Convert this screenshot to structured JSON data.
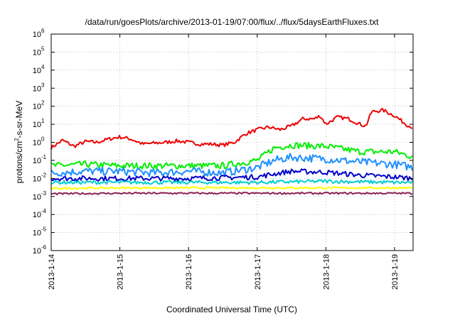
{
  "chart_data": {
    "type": "line",
    "title": "/data/run/goesPlots/archive/2013-01-19/07:00/flux/../flux/5daysEarthFluxes.txt",
    "xlabel": "Coordinated Universal Time (UTC)",
    "ylabel": {
      "prefix": "protons/cm",
      "sup": "2",
      "suffix": "-s-sr-MeV"
    },
    "y_scale": "log",
    "ylim": [
      1e-06,
      1000000.0
    ],
    "xlim": [
      "2013-01-14",
      "2013-01-19 07:00"
    ],
    "grid": true,
    "y_ticks": [
      {
        "value": 1e-06,
        "base": "10",
        "exp": "-6"
      },
      {
        "value": 1e-05,
        "base": "10",
        "exp": "-5"
      },
      {
        "value": 0.0001,
        "base": "10",
        "exp": "-4"
      },
      {
        "value": 0.001,
        "base": "10",
        "exp": "-3"
      },
      {
        "value": 0.01,
        "base": "10",
        "exp": "-2"
      },
      {
        "value": 0.1,
        "base": "10",
        "exp": "-1"
      },
      {
        "value": 1,
        "base": "10",
        "exp": "0"
      },
      {
        "value": 10.0,
        "base": "10",
        "exp": "1"
      },
      {
        "value": 100.0,
        "base": "10",
        "exp": "2"
      },
      {
        "value": 1000.0,
        "base": "10",
        "exp": "3"
      },
      {
        "value": 10000.0,
        "base": "10",
        "exp": "4"
      },
      {
        "value": 100000.0,
        "base": "10",
        "exp": "5"
      },
      {
        "value": 1000000.0,
        "base": "10",
        "exp": "6"
      }
    ],
    "x_ticks": [
      "2013-1-14",
      "2013-1-15",
      "2013-1-16",
      "2013-1-17",
      "2013-1-18",
      "2013-1-19"
    ],
    "series": [
      {
        "color": "#ee0000",
        "points": [
          [
            "2013-01-14 00:00",
            0.5
          ],
          [
            "2013-01-14 04:00",
            1.3
          ],
          [
            "2013-01-14 08:00",
            0.6
          ],
          [
            "2013-01-14 12:00",
            1.1
          ],
          [
            "2013-01-14 16:00",
            1.0
          ],
          [
            "2013-01-14 20:00",
            1.5
          ],
          [
            "2013-01-15 00:00",
            2.0
          ],
          [
            "2013-01-15 04:00",
            1.5
          ],
          [
            "2013-01-15 08:00",
            0.8
          ],
          [
            "2013-01-15 12:00",
            0.9
          ],
          [
            "2013-01-15 16:00",
            1.0
          ],
          [
            "2013-01-15 20:00",
            1.2
          ],
          [
            "2013-01-16 00:00",
            1.0
          ],
          [
            "2013-01-16 04:00",
            0.8
          ],
          [
            "2013-01-16 08:00",
            0.8
          ],
          [
            "2013-01-16 12:00",
            0.7
          ],
          [
            "2013-01-16 16:00",
            1.0
          ],
          [
            "2013-01-16 20:00",
            3.0
          ],
          [
            "2013-01-17 00:00",
            5.0
          ],
          [
            "2013-01-17 04:00",
            7.0
          ],
          [
            "2013-01-17 08:00",
            5.0
          ],
          [
            "2013-01-17 12:00",
            8.0
          ],
          [
            "2013-01-17 16:00",
            20.0
          ],
          [
            "2013-01-17 20:00",
            20.0
          ],
          [
            "2013-01-17 22:00",
            30.0
          ],
          [
            "2013-01-18 00:00",
            10.0
          ],
          [
            "2013-01-18 04:00",
            25.0
          ],
          [
            "2013-01-18 08:00",
            20.0
          ],
          [
            "2013-01-18 12:00",
            10.0
          ],
          [
            "2013-01-18 14:00",
            8.0
          ],
          [
            "2013-01-18 16:00",
            50.0
          ],
          [
            "2013-01-18 20:00",
            60.0
          ],
          [
            "2013-01-19 00:00",
            30.0
          ],
          [
            "2013-01-19 04:00",
            10.0
          ],
          [
            "2013-01-19 07:00",
            6.0
          ]
        ]
      },
      {
        "color": "#00ee00",
        "points": [
          [
            "2013-01-14 00:00",
            0.05
          ],
          [
            "2013-01-14 12:00",
            0.06
          ],
          [
            "2013-01-15 00:00",
            0.05
          ],
          [
            "2013-01-15 12:00",
            0.05
          ],
          [
            "2013-01-16 00:00",
            0.05
          ],
          [
            "2013-01-16 12:00",
            0.05
          ],
          [
            "2013-01-17 00:00",
            0.1
          ],
          [
            "2013-01-17 06:00",
            0.5
          ],
          [
            "2013-01-17 12:00",
            0.7
          ],
          [
            "2013-01-18 00:00",
            0.6
          ],
          [
            "2013-01-18 12:00",
            0.3
          ],
          [
            "2013-01-19 00:00",
            0.3
          ],
          [
            "2013-01-19 07:00",
            0.15
          ]
        ]
      },
      {
        "color": "#1e90ff",
        "points": [
          [
            "2013-01-14 00:00",
            0.02
          ],
          [
            "2013-01-14 12:00",
            0.025
          ],
          [
            "2013-01-15 00:00",
            0.025
          ],
          [
            "2013-01-15 12:00",
            0.02
          ],
          [
            "2013-01-16 00:00",
            0.025
          ],
          [
            "2013-01-16 12:00",
            0.02
          ],
          [
            "2013-01-17 00:00",
            0.04
          ],
          [
            "2013-01-17 06:00",
            0.1
          ],
          [
            "2013-01-17 12:00",
            0.15
          ],
          [
            "2013-01-18 00:00",
            0.12
          ],
          [
            "2013-01-18 12:00",
            0.08
          ],
          [
            "2013-01-19 00:00",
            0.06
          ],
          [
            "2013-01-19 07:00",
            0.04
          ]
        ]
      },
      {
        "color": "#0000cd",
        "points": [
          [
            "2013-01-14 00:00",
            0.01
          ],
          [
            "2013-01-15 00:00",
            0.01
          ],
          [
            "2013-01-16 00:00",
            0.01
          ],
          [
            "2013-01-17 00:00",
            0.012
          ],
          [
            "2013-01-17 06:00",
            0.018
          ],
          [
            "2013-01-17 12:00",
            0.025
          ],
          [
            "2013-01-18 00:00",
            0.022
          ],
          [
            "2013-01-18 12:00",
            0.015
          ],
          [
            "2013-01-19 00:00",
            0.012
          ],
          [
            "2013-01-19 07:00",
            0.01
          ]
        ]
      },
      {
        "color": "#00ced1",
        "points": [
          [
            "2013-01-14 00:00",
            0.006
          ],
          [
            "2013-01-15 00:00",
            0.006
          ],
          [
            "2013-01-16 00:00",
            0.006
          ],
          [
            "2013-01-17 00:00",
            0.006
          ],
          [
            "2013-01-18 00:00",
            0.007
          ],
          [
            "2013-01-19 00:00",
            0.006
          ],
          [
            "2013-01-19 07:00",
            0.006
          ]
        ]
      },
      {
        "color": "#ffff00",
        "points": [
          [
            "2013-01-14 00:00",
            0.0028
          ],
          [
            "2013-01-15 00:00",
            0.003
          ],
          [
            "2013-01-16 00:00",
            0.003
          ],
          [
            "2013-01-17 00:00",
            0.003
          ],
          [
            "2013-01-18 00:00",
            0.003
          ],
          [
            "2013-01-19 00:00",
            0.003
          ],
          [
            "2013-01-19 07:00",
            0.003
          ]
        ]
      },
      {
        "color": "#8b2252",
        "points": [
          [
            "2013-01-14 00:00",
            0.0014
          ],
          [
            "2013-01-15 00:00",
            0.0015
          ],
          [
            "2013-01-16 00:00",
            0.0015
          ],
          [
            "2013-01-17 00:00",
            0.0015
          ],
          [
            "2013-01-18 00:00",
            0.0015
          ],
          [
            "2013-01-19 00:00",
            0.0015
          ],
          [
            "2013-01-19 07:00",
            0.0015
          ]
        ]
      }
    ]
  }
}
